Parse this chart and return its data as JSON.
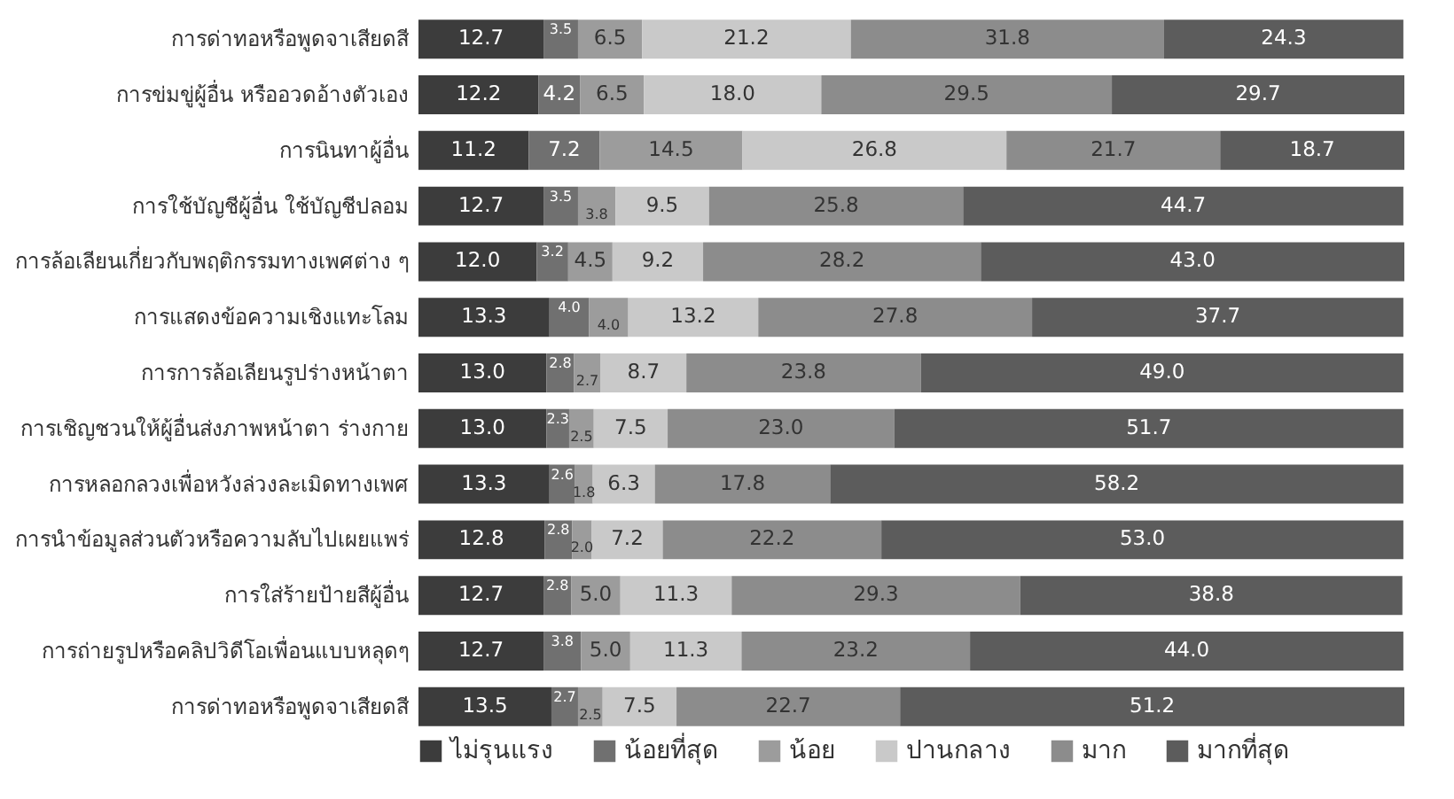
{
  "chart_data": {
    "type": "bar",
    "orientation": "horizontal",
    "stacked": true,
    "legend": "bottom",
    "categories": [
      "การด่าทอหรือพูดจาเสียดสี",
      "การข่มขู่ผู้อื่น หรืออวดอ้างตัวเอง",
      "การนินทาผู้อื่น",
      "การใช้บัญชีผู้อื่น ใช้บัญชีปลอม",
      "การล้อเลียนเกี่ยวกับพฤติกรรมทางเพศต่าง ๆ",
      "การแสดงข้อความเชิงแทะโลม",
      "การการล้อเลียนรูปร่างหน้าตา",
      "การเชิญชวนให้ผู้อื่นส่งภาพหน้าตา ร่างกาย",
      "การหลอกลวงเพื่อหวังล่วงละเมิดทางเพศ",
      "การนำข้อมูลส่วนตัวหรือความลับไปเผยแพร่",
      "การใส่ร้ายป้ายสีผู้อื่น",
      "การถ่ายรูปหรือคลิปวิดีโอเพื่อนแบบหลุดๆ",
      "การด่าทอหรือพูดจาเสียดสี"
    ],
    "series": [
      {
        "name": "ไม่รุนแรง",
        "color": "#3c3c3c",
        "values": [
          12.7,
          12.2,
          11.2,
          12.7,
          12.0,
          13.3,
          13.0,
          13.0,
          13.3,
          12.8,
          12.7,
          12.7,
          13.5
        ],
        "value_labels": [
          "12.7",
          "12.2",
          "11.2",
          "12.7",
          "12.0",
          "13.3",
          "13.0",
          "13.0",
          "13.3",
          "12.8",
          "12.7",
          "12.7",
          "13.5"
        ]
      },
      {
        "name": "น้อยที่สุด",
        "color": "#707070",
        "values": [
          3.5,
          4.2,
          7.2,
          3.5,
          3.2,
          4.0,
          2.8,
          2.3,
          2.6,
          2.8,
          2.8,
          3.8,
          2.7
        ],
        "value_labels": [
          "3.5",
          "4.2",
          "7.2",
          "3.5",
          "3.2",
          "4.0",
          "2.8",
          "2.3",
          "2.6",
          "2.8",
          "2.8",
          "3.8",
          "2.7"
        ]
      },
      {
        "name": "น้อย",
        "color": "#9c9c9c",
        "values": [
          6.5,
          6.5,
          14.5,
          3.8,
          4.5,
          4.0,
          2.7,
          2.5,
          1.8,
          2.0,
          5.0,
          5.0,
          2.5
        ],
        "value_labels": [
          "6.5",
          "6.5",
          "14.5",
          "3.8",
          "4.5",
          "4.0",
          "2.7",
          "2.5",
          "1.8",
          "2.0",
          "5.0",
          "5.0",
          "2.5"
        ]
      },
      {
        "name": "ปานกลาง",
        "color": "#c9c9c9",
        "values": [
          21.2,
          18.0,
          26.8,
          9.5,
          9.2,
          13.2,
          8.7,
          7.5,
          6.3,
          7.2,
          11.3,
          11.3,
          7.5
        ],
        "value_labels": [
          "21.2",
          "18.0",
          "26.8",
          "9.5",
          "9.2",
          "13.2",
          "8.7",
          "7.5",
          "6.3",
          "7.2",
          "11.3",
          "11.3",
          "7.5"
        ]
      },
      {
        "name": "มาก",
        "color": "#8c8c8c",
        "values": [
          31.8,
          29.5,
          21.7,
          25.8,
          28.2,
          27.8,
          23.8,
          23.0,
          17.8,
          22.2,
          29.3,
          23.2,
          22.7
        ],
        "value_labels": [
          "31.8",
          "29.5",
          "21.7",
          "25.8",
          "28.2",
          "27.8",
          "23.8",
          "23.0",
          "17.8",
          "22.2",
          "29.3",
          "23.2",
          "22.7"
        ]
      },
      {
        "name": "มากที่สุด",
        "color": "#5c5c5c",
        "values": [
          24.3,
          29.7,
          18.7,
          44.7,
          43.0,
          37.7,
          49.0,
          51.7,
          58.2,
          53.0,
          38.8,
          44.0,
          51.2
        ],
        "value_labels": [
          "24.3",
          "29.7",
          "18.7",
          "44.7",
          "43.0",
          "37.7",
          "49.0",
          "51.7",
          "58.2",
          "53.0",
          "38.8",
          "44.0",
          "51.2"
        ]
      }
    ]
  }
}
